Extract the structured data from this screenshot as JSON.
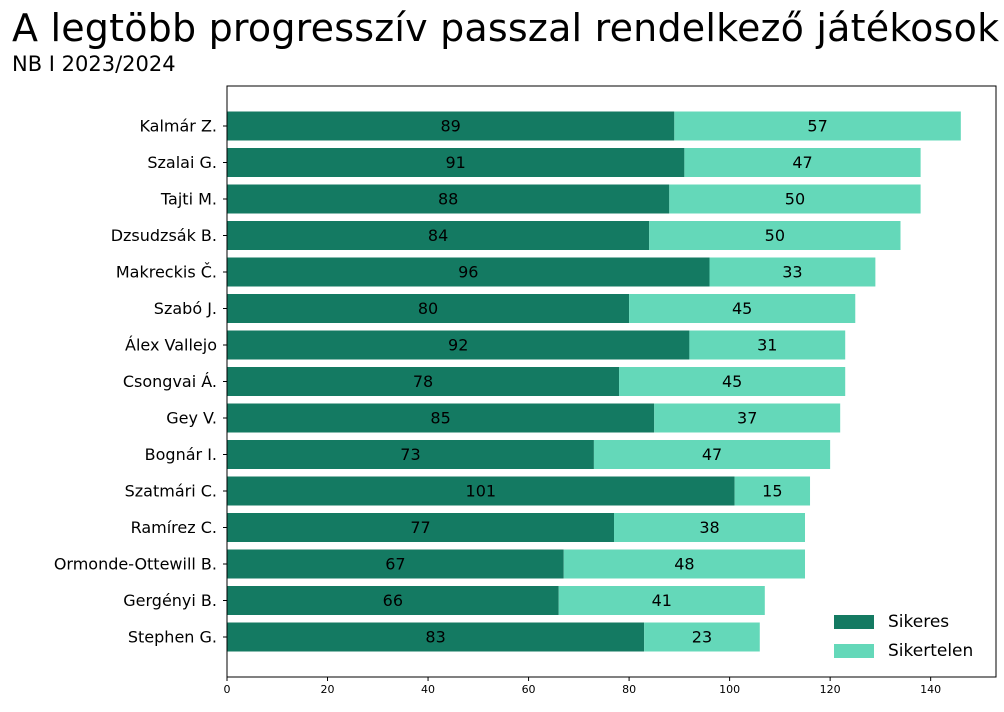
{
  "header": {
    "title": "A legtöbb progresszív passzal rendelkező játékosok",
    "subtitle": "NB I 2023/2024"
  },
  "chart_data": {
    "type": "bar",
    "orientation": "horizontal",
    "stacked": true,
    "title": "A legtöbb progresszív passzal rendelkező játékosok",
    "subtitle": "NB I 2023/2024",
    "xlabel": "",
    "ylabel": "",
    "xlim": [
      0,
      153
    ],
    "xticks": [
      0,
      20,
      40,
      60,
      80,
      100,
      120,
      140
    ],
    "grid": false,
    "legend_position": "bottom-right",
    "categories": [
      "Kalmár Z.",
      "Szalai G.",
      "Tajti M.",
      "Dzsudzsák B.",
      "Makreckis Č.",
      "Szabó J.",
      "Álex Vallejo",
      "Csongvai Á.",
      "Gey V.",
      "Bognár I.",
      "Szatmári C.",
      "Ramírez C.",
      "Ormonde-Ottewill B.",
      "Gergényi B.",
      "Stephen G."
    ],
    "series": [
      {
        "name": "Sikeres",
        "color": "#147a62",
        "values": [
          89,
          91,
          88,
          84,
          96,
          80,
          92,
          78,
          85,
          73,
          101,
          77,
          67,
          66,
          83
        ]
      },
      {
        "name": "Sikertelen",
        "color": "#64d8b9",
        "values": [
          57,
          47,
          50,
          50,
          33,
          45,
          31,
          45,
          37,
          47,
          15,
          38,
          48,
          41,
          23
        ]
      }
    ]
  }
}
